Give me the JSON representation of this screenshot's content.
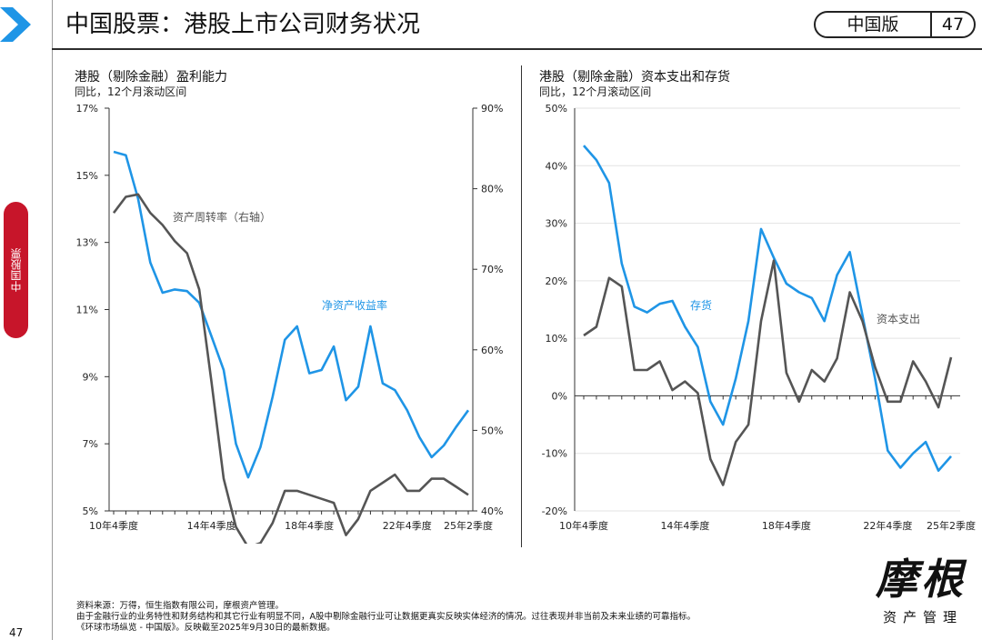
{
  "header": {
    "title": "中国股票：港股上市公司财务状况",
    "edition": "中国版",
    "page_number": "47"
  },
  "side_tab": {
    "label": "中国股票"
  },
  "left_chart": {
    "title": "港股（剔除金融）盈利能力",
    "subtitle": "同比，12个月滚动区间"
  },
  "right_chart": {
    "title": "港股（剔除金融）资本支出和存货",
    "subtitle": "同比，12个月滚动区间"
  },
  "footer": {
    "line1": "资料来源：万得，恒生指数有限公司，摩根资产管理。",
    "line2": "由于金融行业的业务特性和财务结构和其它行业有明显不同，A股中剔除金融行业可让数据更真实反映实体经济的情况。过往表现并非当前及未来业绩的可靠指标。",
    "line3": "《环球市场纵览 - 中国版》。反映截至2025年9月30日的最新数据。"
  },
  "page_number_bottom": "47",
  "logo": {
    "text": "摩根",
    "subtext": "资产管理"
  },
  "colors": {
    "blue": "#1f95e6",
    "gray": "#555555",
    "red": "#c7152a"
  },
  "chart_data": [
    {
      "type": "line",
      "title": "港股（剔除金融）盈利能力",
      "subtitle": "同比，12个月滚动区间",
      "x_labels": [
        "10年4季度",
        "14年4季度",
        "18年4季度",
        "22年4季度",
        "25年2季度"
      ],
      "left_axis": {
        "ylim": [
          5,
          17
        ],
        "ticks": [
          "5%",
          "7%",
          "9%",
          "11%",
          "13%",
          "15%",
          "17%"
        ]
      },
      "right_axis": {
        "ylim": [
          40,
          90
        ],
        "ticks": [
          "40%",
          "50%",
          "60%",
          "70%",
          "80%",
          "90%"
        ]
      },
      "series": [
        {
          "name": "净资产收益率",
          "axis": "left",
          "color": "#1f95e6",
          "values": [
            15.7,
            15.6,
            14.3,
            12.4,
            11.5,
            11.6,
            11.55,
            11.2,
            10.2,
            9.2,
            7.0,
            6.0,
            6.9,
            8.4,
            10.1,
            10.5,
            9.1,
            9.2,
            9.9,
            8.3,
            8.7,
            10.5,
            8.8,
            8.6,
            8.0,
            7.2,
            6.6,
            6.95,
            7.5,
            8.0
          ]
        },
        {
          "name": "资产周转率（右轴）",
          "axis": "right",
          "color": "#555555",
          "values": [
            77,
            79,
            79.3,
            77,
            75.5,
            73.5,
            72,
            67.5,
            56,
            44,
            38,
            35.5,
            36,
            38.5,
            42.5,
            42.5,
            42,
            41.5,
            41,
            37,
            39,
            42.5,
            43.5,
            44.5,
            42.5,
            42.5,
            44,
            44,
            43,
            42
          ]
        }
      ]
    },
    {
      "type": "line",
      "title": "港股（剔除金融）资本支出和存货",
      "subtitle": "同比，12个月滚动区间",
      "x_labels": [
        "10年4季度",
        "14年4季度",
        "18年4季度",
        "22年4季度",
        "25年2季度"
      ],
      "y_axis": {
        "ylim": [
          -20,
          50
        ],
        "ticks": [
          "-20%",
          "-10%",
          "0%",
          "10%",
          "20%",
          "30%",
          "40%",
          "50%"
        ]
      },
      "series": [
        {
          "name": "存货",
          "color": "#1f95e6",
          "values": [
            43.5,
            41,
            37,
            23,
            15.5,
            14.5,
            16,
            16.5,
            12,
            8.5,
            -1,
            -5,
            3,
            13,
            29,
            24,
            19.5,
            18,
            17,
            13,
            21,
            25,
            14,
            3,
            -9.5,
            -12.5,
            -10,
            -8,
            -13,
            -10.5
          ]
        },
        {
          "name": "资本支出",
          "color": "#555555",
          "values": [
            10.5,
            12,
            20.5,
            19,
            4.5,
            4.5,
            6,
            1,
            2.5,
            0.5,
            -11,
            -15.5,
            -8,
            -5,
            13,
            23.5,
            4,
            -1,
            4.5,
            2.5,
            6.5,
            18,
            13,
            5,
            -1,
            -1,
            6,
            2.5,
            -2,
            6.7
          ]
        }
      ],
      "annotations": [
        "存货",
        "资本支出"
      ]
    }
  ]
}
